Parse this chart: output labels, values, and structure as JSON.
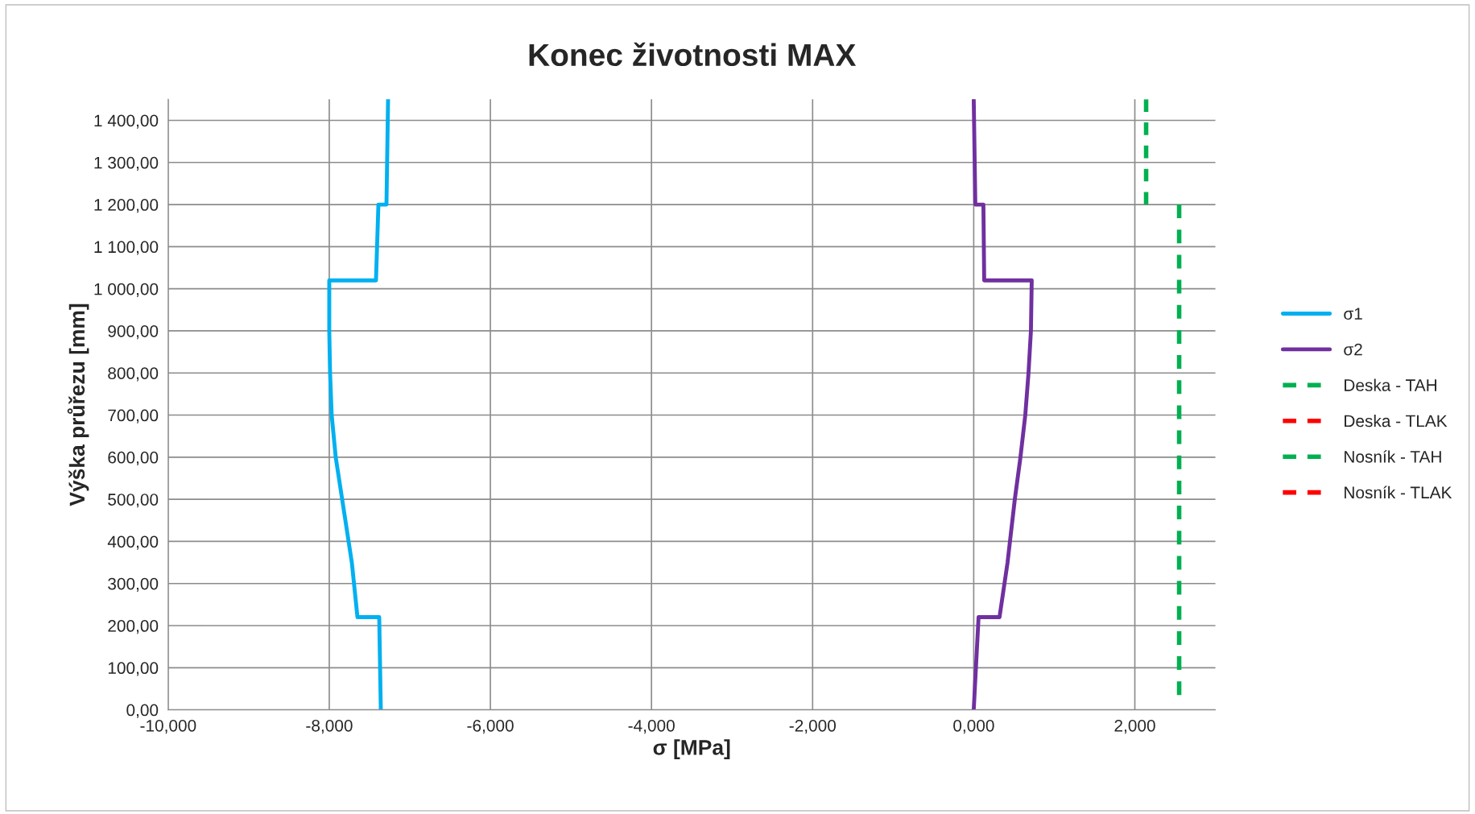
{
  "chart_data": {
    "type": "line",
    "title": "Konec životnosti MAX",
    "xlabel": "σ [MPa]",
    "ylabel": "Výška průřezu [mm]",
    "xlim": [
      -10,
      3
    ],
    "ylim": [
      0,
      1450
    ],
    "xticks": [
      {
        "value": -10,
        "label": "-10,000"
      },
      {
        "value": -8,
        "label": "-8,000"
      },
      {
        "value": -6,
        "label": "-6,000"
      },
      {
        "value": -4,
        "label": "-4,000"
      },
      {
        "value": -2,
        "label": "-2,000"
      },
      {
        "value": 0,
        "label": "0,000"
      },
      {
        "value": 2,
        "label": "2,000"
      }
    ],
    "yticks": [
      {
        "value": 0,
        "label": "0,00"
      },
      {
        "value": 100,
        "label": "100,00"
      },
      {
        "value": 200,
        "label": "200,00"
      },
      {
        "value": 300,
        "label": "300,00"
      },
      {
        "value": 400,
        "label": "400,00"
      },
      {
        "value": 500,
        "label": "500,00"
      },
      {
        "value": 600,
        "label": "600,00"
      },
      {
        "value": 700,
        "label": "700,00"
      },
      {
        "value": 800,
        "label": "800,00"
      },
      {
        "value": 900,
        "label": "900,00"
      },
      {
        "value": 1000,
        "label": "1 000,00"
      },
      {
        "value": 1100,
        "label": "1 100,00"
      },
      {
        "value": 1200,
        "label": "1 200,00"
      },
      {
        "value": 1300,
        "label": "1 300,00"
      },
      {
        "value": 1400,
        "label": "1 400,00"
      }
    ],
    "grid": true,
    "legend": "right",
    "series": [
      {
        "name": "σ1",
        "color": "#00b0f0",
        "line_style": "solid",
        "x": [
          -7.36,
          -7.38,
          -7.65,
          -7.72,
          -7.84,
          -7.92,
          -7.97,
          -7.99,
          -8.0,
          -8.0,
          -7.42,
          -7.39,
          -7.29,
          -7.27
        ],
        "values": [
          0,
          220,
          220,
          350,
          500,
          600,
          700,
          800,
          900,
          1020,
          1020,
          1200,
          1200,
          1450
        ]
      },
      {
        "name": "σ2",
        "color": "#7030a0",
        "line_style": "solid",
        "x": [
          0.0,
          0.06,
          0.32,
          0.42,
          0.51,
          0.58,
          0.64,
          0.68,
          0.71,
          0.72,
          0.13,
          0.12,
          0.02,
          0.0
        ],
        "values": [
          0,
          220,
          220,
          350,
          500,
          600,
          700,
          800,
          900,
          1020,
          1020,
          1200,
          1200,
          1450
        ]
      },
      {
        "name": "Deska - TAH",
        "color": "#00b050",
        "line_style": "dashed",
        "x": [
          2.14,
          2.14
        ],
        "values": [
          1200,
          1450
        ]
      },
      {
        "name": "Deska - TLAK",
        "color": "#ff0000",
        "line_style": "dashed",
        "x": [
          null,
          null
        ],
        "values": [
          null,
          null
        ]
      },
      {
        "name": "Nosník - TAH",
        "color": "#00b050",
        "line_style": "dashed",
        "x": [
          2.55,
          2.55
        ],
        "values": [
          1200,
          35
        ]
      },
      {
        "name": "Nosník - TLAK",
        "color": "#ff0000",
        "line_style": "dashed",
        "x": [
          null,
          null
        ],
        "values": [
          null,
          null
        ]
      }
    ]
  }
}
